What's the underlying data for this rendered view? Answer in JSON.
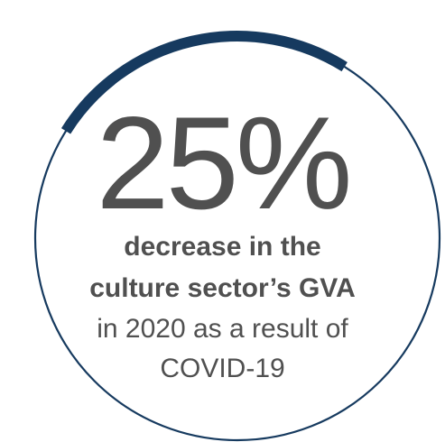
{
  "chart_data": {
    "type": "pie",
    "value": 25,
    "unit": "%",
    "big_text": "25%",
    "caption_bold": [
      "decrease in the",
      "culture sector’s GVA"
    ],
    "caption_regular": [
      "in 2020 as a result of",
      "COVID-19"
    ]
  },
  "colors": {
    "accent": "#163a5f",
    "track": "#163a5f",
    "text": "#505050"
  }
}
